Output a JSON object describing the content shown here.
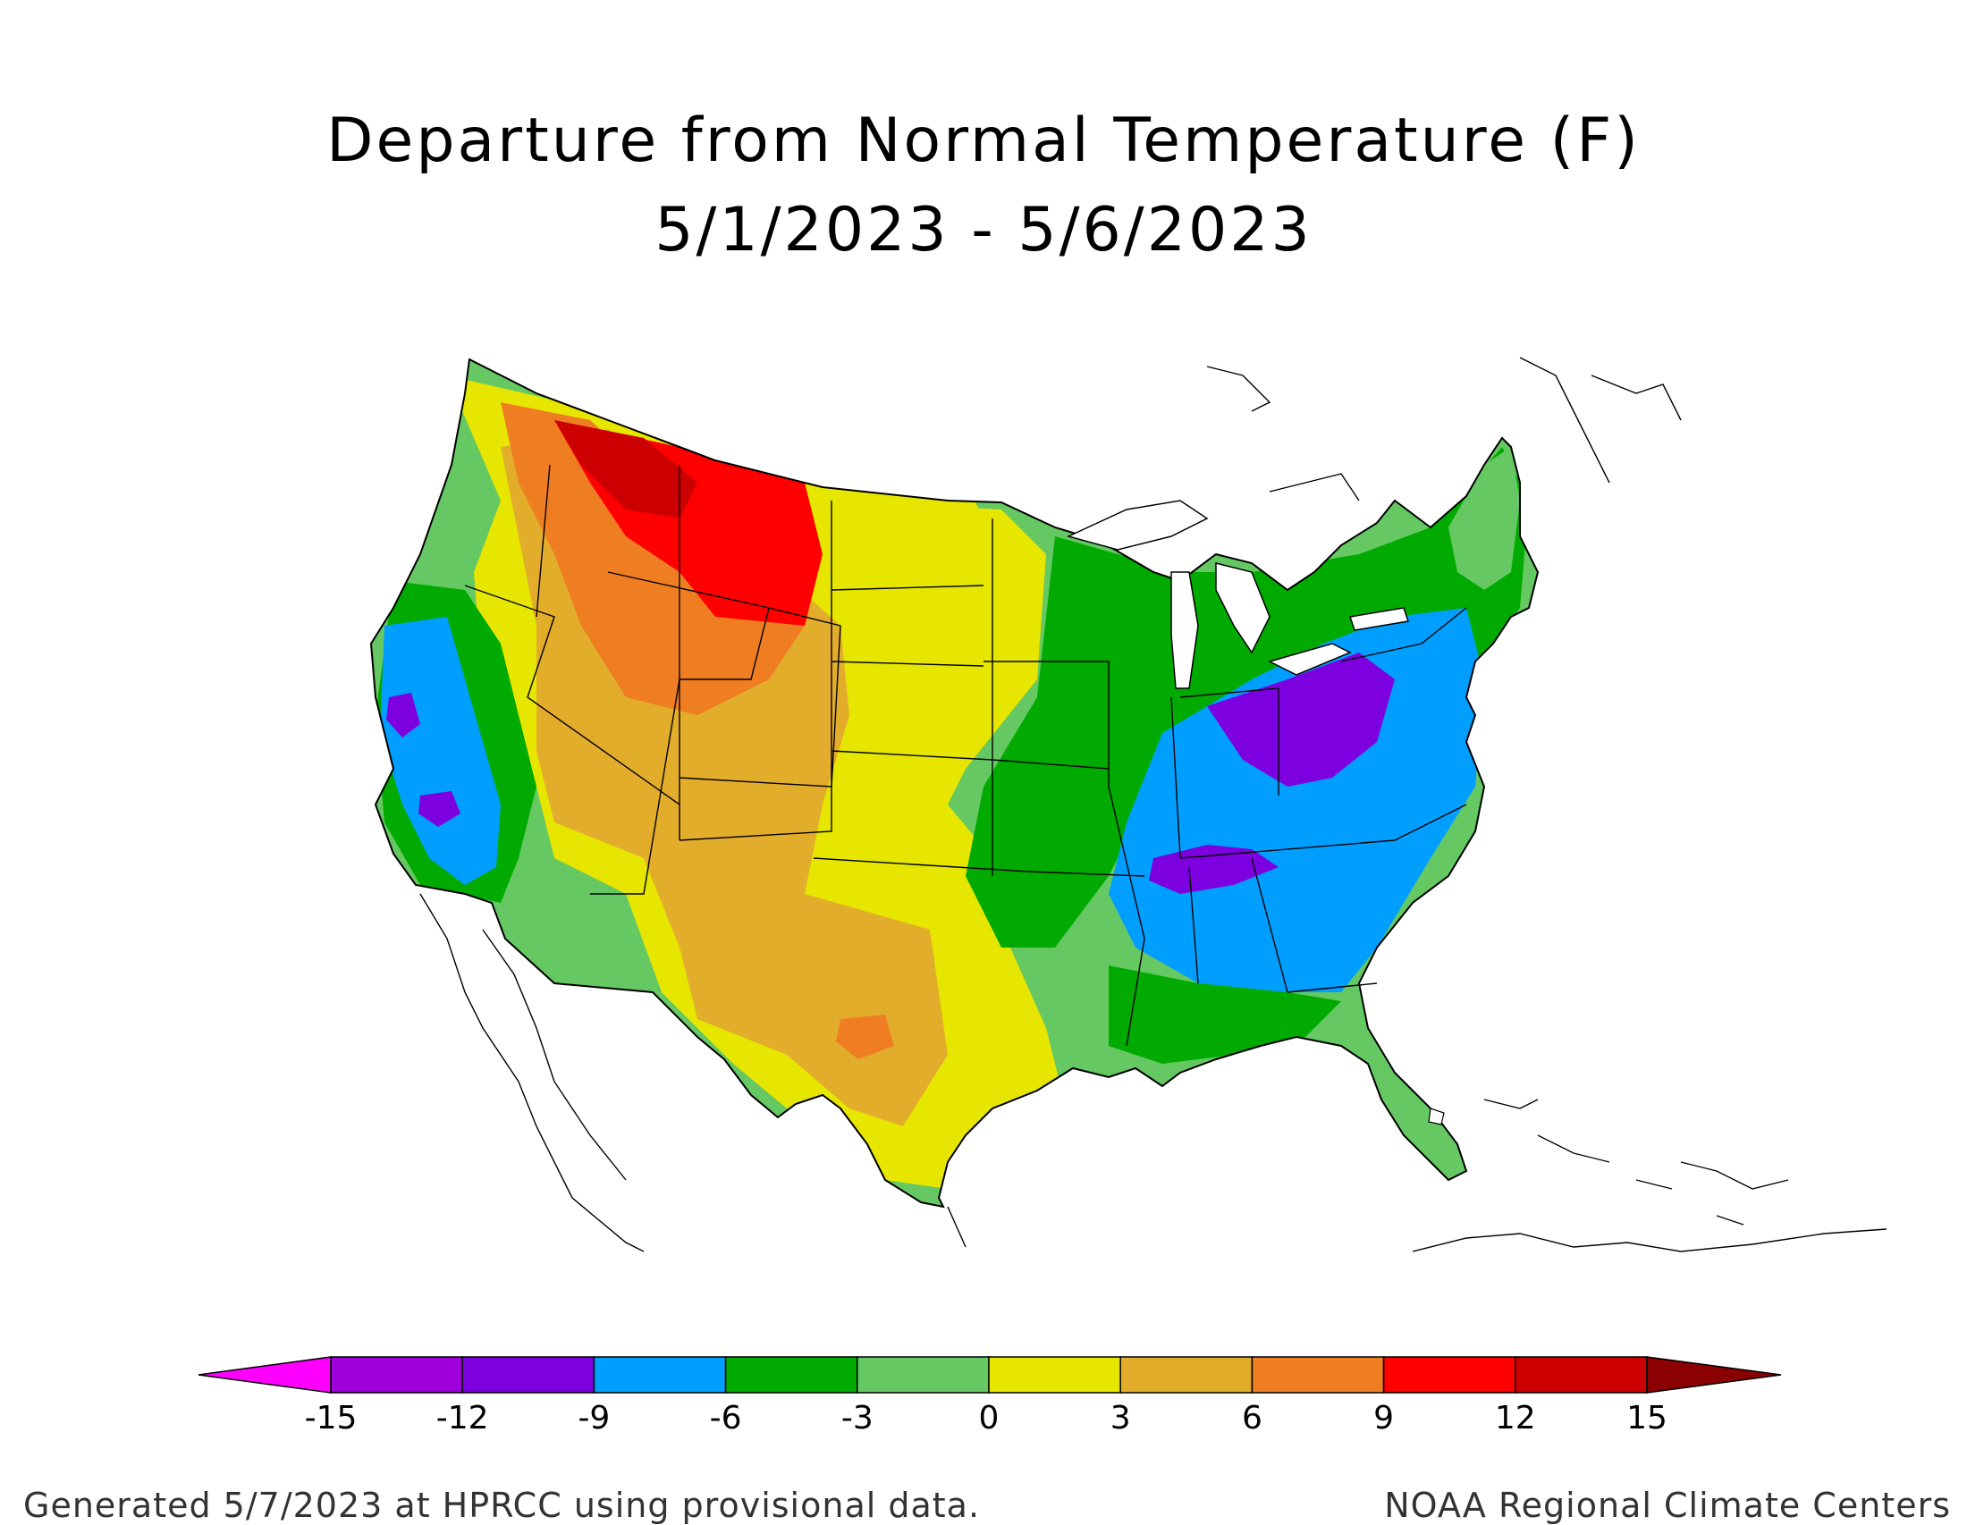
{
  "title": {
    "line1": "Departure from Normal Temperature (F)",
    "line2": "5/1/2023 - 5/6/2023"
  },
  "legend": {
    "ticks": [
      "-15",
      "-12",
      "-9",
      "-6",
      "-3",
      "0",
      "3",
      "6",
      "9",
      "12",
      "15"
    ],
    "colors": {
      "below_min": "#ff00ff",
      "bins": [
        "#9f00d9",
        "#7d00e0",
        "#009fff",
        "#00aa00",
        "#66c863",
        "#e6e600",
        "#e3ad2c",
        "#ef7e22",
        "#ff0000",
        "#cc0000"
      ],
      "above_max": "#8b0000"
    }
  },
  "map_colors": {
    "land_base": "#66c863",
    "purple": "#7d00e0",
    "blue": "#009fff",
    "green": "#00aa00",
    "light_green": "#66c863",
    "yellow": "#e6e600",
    "gold": "#e3ad2c",
    "orange": "#ef7e22",
    "red": "#ff0000",
    "dark_red": "#cc0000",
    "outline": "#000000"
  },
  "footer": {
    "left": "Generated 5/7/2023 at HPRCC using provisional data.",
    "right": "NOAA Regional Climate Centers"
  }
}
